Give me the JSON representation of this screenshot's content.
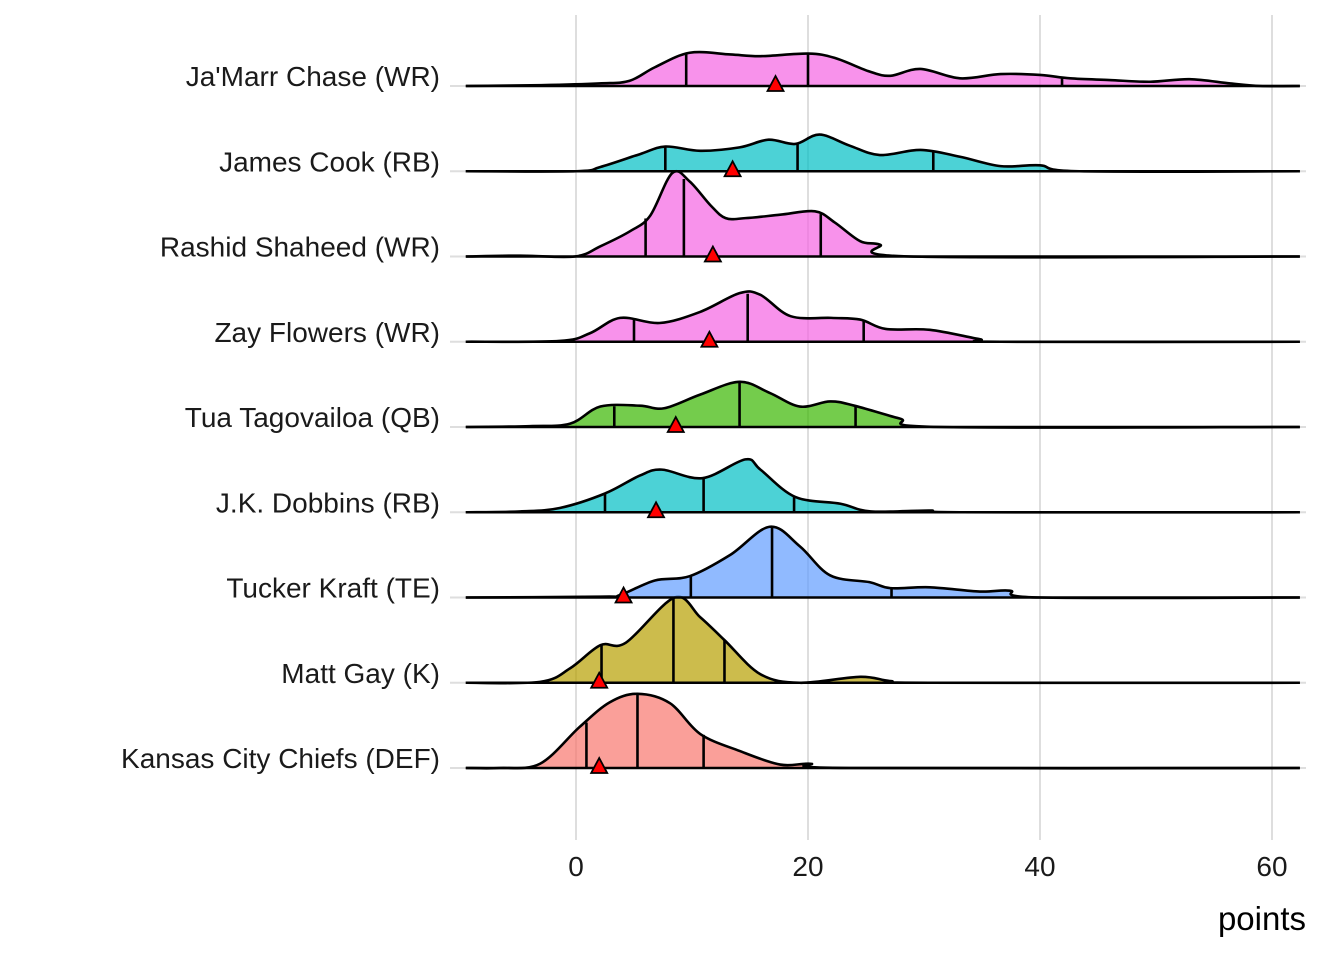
{
  "chart_data": {
    "type": "ridgeline",
    "title": "",
    "xlabel": "points",
    "ylabel": "",
    "xlim": [
      -9.5,
      62.4
    ],
    "xticks": [
      0,
      20,
      40,
      60
    ],
    "grid": true,
    "legend": "none",
    "marker_legend": "red triangle = projected/mean points; vertical lines = quartiles (25th, 50th, 75th)",
    "rows": [
      {
        "label": "Ja'Marr Chase (WR)",
        "position": "WR",
        "color": "#f564e3",
        "quantiles": [
          9.5,
          20.0,
          41.9
        ],
        "marker": 17.2,
        "density": [
          [
            -9.5,
            0
          ],
          [
            -3,
            0.01
          ],
          [
            2,
            0.03
          ],
          [
            4.6,
            0.06
          ],
          [
            6.8,
            0.22
          ],
          [
            9.8,
            0.39
          ],
          [
            13.3,
            0.37
          ],
          [
            15.9,
            0.35
          ],
          [
            20,
            0.38
          ],
          [
            22.3,
            0.33
          ],
          [
            25.3,
            0.17
          ],
          [
            27.1,
            0.12
          ],
          [
            29.7,
            0.2
          ],
          [
            33.1,
            0.09
          ],
          [
            36.6,
            0.14
          ],
          [
            40,
            0.13
          ],
          [
            42.6,
            0.09
          ],
          [
            46.0,
            0.07
          ],
          [
            49.5,
            0.05
          ],
          [
            52.9,
            0.08
          ],
          [
            56.4,
            0.03
          ],
          [
            59,
            0.0
          ],
          [
            62.4,
            0
          ]
        ]
      },
      {
        "label": "James Cook (RB)",
        "position": "RB",
        "color": "#00bfc4",
        "quantiles": [
          7.7,
          19.1,
          30.8
        ],
        "marker": 13.5,
        "density": [
          [
            -9.5,
            0
          ],
          [
            0,
            0.0
          ],
          [
            2.1,
            0.05
          ],
          [
            5.5,
            0.2
          ],
          [
            7.7,
            0.29
          ],
          [
            10.7,
            0.24
          ],
          [
            14.1,
            0.28
          ],
          [
            16.6,
            0.37
          ],
          [
            18.9,
            0.32
          ],
          [
            21.0,
            0.43
          ],
          [
            23.6,
            0.3
          ],
          [
            26.2,
            0.19
          ],
          [
            29.7,
            0.25
          ],
          [
            33.1,
            0.17
          ],
          [
            36.6,
            0.06
          ],
          [
            40,
            0.07
          ],
          [
            43.4,
            0.0
          ],
          [
            62.4,
            0
          ]
        ]
      },
      {
        "label": "Rashid Shaheed (WR)",
        "position": "WR",
        "color": "#f564e3",
        "quantiles": [
          6.0,
          9.3,
          21.1
        ],
        "marker": 11.8,
        "density": [
          [
            -9.5,
            0
          ],
          [
            -4.8,
            0.01
          ],
          [
            -0.1,
            0
          ],
          [
            2.1,
            0.12
          ],
          [
            4.7,
            0.3
          ],
          [
            6.4,
            0.48
          ],
          [
            8.3,
            0.98
          ],
          [
            9.8,
            0.88
          ],
          [
            11.6,
            0.6
          ],
          [
            12.9,
            0.45
          ],
          [
            14.6,
            0.45
          ],
          [
            17.6,
            0.49
          ],
          [
            20.6,
            0.53
          ],
          [
            22.3,
            0.4
          ],
          [
            24.5,
            0.18
          ],
          [
            26.2,
            0.14
          ],
          [
            28.8,
            0.0
          ],
          [
            62.4,
            0
          ]
        ]
      },
      {
        "label": "Zay Flowers (WR)",
        "position": "WR",
        "color": "#f564e3",
        "quantiles": [
          5.0,
          14.8,
          24.8
        ],
        "marker": 11.5,
        "density": [
          [
            -9.5,
            0
          ],
          [
            -1.4,
            0.01
          ],
          [
            1.2,
            0.1
          ],
          [
            3.8,
            0.28
          ],
          [
            7.2,
            0.22
          ],
          [
            10.7,
            0.35
          ],
          [
            14.1,
            0.57
          ],
          [
            15.9,
            0.55
          ],
          [
            18.5,
            0.3
          ],
          [
            22.0,
            0.28
          ],
          [
            24.5,
            0.26
          ],
          [
            26.7,
            0.15
          ],
          [
            30.5,
            0.14
          ],
          [
            34.8,
            0.03
          ],
          [
            36.6,
            0.0
          ],
          [
            62.4,
            0
          ]
        ]
      },
      {
        "label": "Tua Tagovailoa (QB)",
        "position": "QB",
        "color": "#39b600",
        "quantiles": [
          3.3,
          14.1,
          24.1
        ],
        "marker": 8.6,
        "density": [
          [
            -9.5,
            0
          ],
          [
            -4.0,
            0.01
          ],
          [
            -0.5,
            0.04
          ],
          [
            2.1,
            0.24
          ],
          [
            5.5,
            0.25
          ],
          [
            7.6,
            0.22
          ],
          [
            10.7,
            0.38
          ],
          [
            14.1,
            0.53
          ],
          [
            16.7,
            0.4
          ],
          [
            19.3,
            0.24
          ],
          [
            21.9,
            0.3
          ],
          [
            24.0,
            0.25
          ],
          [
            27.9,
            0.1
          ],
          [
            31.4,
            0.0
          ],
          [
            62.4,
            0
          ]
        ]
      },
      {
        "label": "J.K. Dobbins (RB)",
        "position": "RB",
        "color": "#00bfc4",
        "quantiles": [
          2.5,
          11.0,
          18.8
        ],
        "marker": 6.9,
        "density": [
          [
            -9.5,
            0
          ],
          [
            -4.8,
            0.01
          ],
          [
            -1.4,
            0.05
          ],
          [
            2.5,
            0.22
          ],
          [
            5.5,
            0.43
          ],
          [
            7.4,
            0.5
          ],
          [
            10.9,
            0.4
          ],
          [
            14.6,
            0.62
          ],
          [
            15.9,
            0.5
          ],
          [
            18.9,
            0.18
          ],
          [
            22.8,
            0.1
          ],
          [
            25.4,
            0.01
          ],
          [
            30.5,
            0.02
          ],
          [
            33.1,
            0.0
          ],
          [
            62.4,
            0
          ]
        ]
      },
      {
        "label": "Tucker Kraft (TE)",
        "position": "TE",
        "color": "#619cff",
        "quantiles": [
          9.9,
          16.9,
          27.2
        ],
        "marker": 4.1,
        "density": [
          [
            -9.5,
            0
          ],
          [
            2.1,
            0.01
          ],
          [
            3.8,
            0.03
          ],
          [
            6.8,
            0.2
          ],
          [
            9.8,
            0.25
          ],
          [
            13.3,
            0.5
          ],
          [
            16.7,
            0.83
          ],
          [
            19.3,
            0.6
          ],
          [
            21.9,
            0.26
          ],
          [
            25.3,
            0.18
          ],
          [
            27.1,
            0.11
          ],
          [
            30.5,
            0.12
          ],
          [
            34.8,
            0.07
          ],
          [
            37.4,
            0.08
          ],
          [
            40,
            0.0
          ],
          [
            62.4,
            0
          ]
        ]
      },
      {
        "label": "Matt Gay (K)",
        "position": "K",
        "color": "#b79f00",
        "quantiles": [
          2.2,
          8.4,
          12.8
        ],
        "marker": 2.0,
        "density": [
          [
            -9.5,
            0
          ],
          [
            -3.1,
            0.01
          ],
          [
            -0.5,
            0.17
          ],
          [
            2.1,
            0.44
          ],
          [
            4.3,
            0.47
          ],
          [
            8.5,
            1.0
          ],
          [
            10.7,
            0.77
          ],
          [
            12.8,
            0.5
          ],
          [
            15.9,
            0.1
          ],
          [
            19.3,
            0.0
          ],
          [
            24.5,
            0.07
          ],
          [
            27.1,
            0.02
          ],
          [
            30.5,
            0.0
          ],
          [
            62.4,
            0
          ]
        ]
      },
      {
        "label": "Kansas City Chiefs (DEF)",
        "position": "DEF",
        "color": "#f8766d",
        "quantiles": [
          0.9,
          5.3,
          11.0
        ],
        "marker": 2.0,
        "density": [
          [
            -9.5,
            0
          ],
          [
            -6.6,
            0.0
          ],
          [
            -3.1,
            0.05
          ],
          [
            0.3,
            0.48
          ],
          [
            2.9,
            0.77
          ],
          [
            5.3,
            0.87
          ],
          [
            8.1,
            0.76
          ],
          [
            10.7,
            0.4
          ],
          [
            14.1,
            0.2
          ],
          [
            17.6,
            0.04
          ],
          [
            20.2,
            0.05
          ],
          [
            23.6,
            0.0
          ],
          [
            62.4,
            0
          ]
        ]
      }
    ]
  }
}
